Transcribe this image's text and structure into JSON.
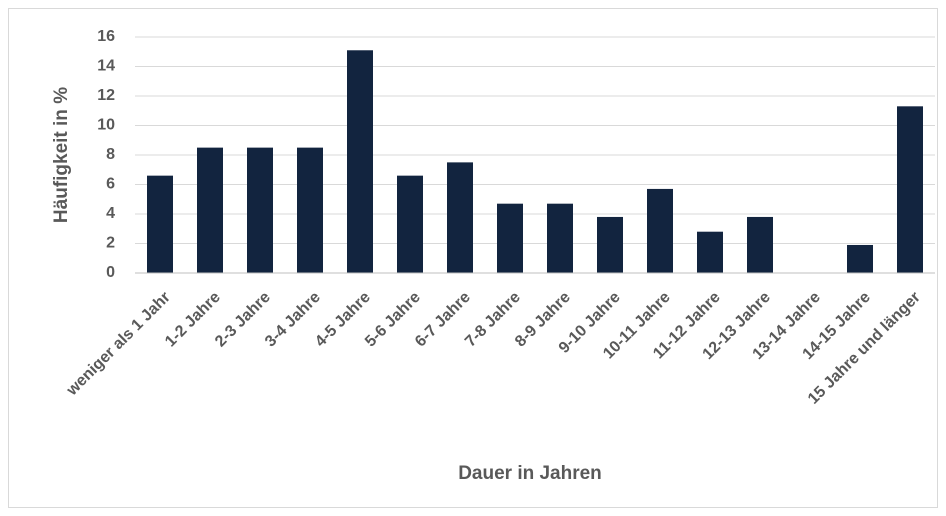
{
  "chart_data": {
    "type": "bar",
    "x_label": "Dauer in Jahren",
    "y_label": "Häufigkeit in %",
    "categories": [
      "weniger als 1 Jahr",
      "1-2 Jahre",
      "2-3 Jahre",
      "3-4 Jahre",
      "4-5 Jahre",
      "5-6 Jahre",
      "6-7 Jahre",
      "7-8 Jahre",
      "8-9 Jahre",
      "9-10 Jahre",
      "10-11 Jahre",
      "11-12 Jahre",
      "12-13 Jahre",
      "13-14 Jahre",
      "14-15 Jahre",
      "15 Jahre und länger"
    ],
    "values": [
      6.6,
      8.5,
      8.5,
      8.5,
      15.1,
      6.6,
      7.5,
      4.7,
      4.7,
      3.8,
      5.7,
      2.8,
      3.8,
      0,
      1.9,
      11.3
    ],
    "color": "#12243f",
    "ylim": [
      0,
      16
    ],
    "yticks": [
      0,
      2,
      4,
      6,
      8,
      10,
      12,
      14,
      16
    ],
    "grid": true
  }
}
